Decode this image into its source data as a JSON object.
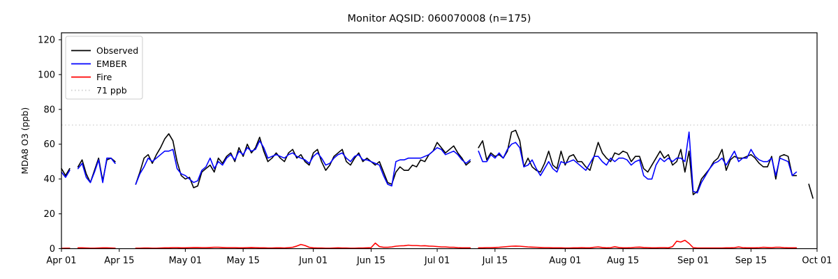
{
  "chart_data": {
    "type": "line",
    "title": "Monitor AQSID: 060070008 (n=175)",
    "xlabel": "",
    "ylabel": "MDA8 O3 (ppb)",
    "ylim": [
      0,
      124
    ],
    "yticks": [
      0,
      20,
      40,
      60,
      80,
      100,
      120
    ],
    "x_range_days": [
      0,
      183
    ],
    "xticks": [
      {
        "day": 0,
        "label": "Apr 01"
      },
      {
        "day": 14,
        "label": "Apr 15"
      },
      {
        "day": 30,
        "label": "May 01"
      },
      {
        "day": 44,
        "label": "May 15"
      },
      {
        "day": 61,
        "label": "Jun 01"
      },
      {
        "day": 75,
        "label": "Jun 15"
      },
      {
        "day": 91,
        "label": "Jul 01"
      },
      {
        "day": 105,
        "label": "Jul 15"
      },
      {
        "day": 122,
        "label": "Aug 01"
      },
      {
        "day": 136,
        "label": "Aug 15"
      },
      {
        "day": 153,
        "label": "Sep 01"
      },
      {
        "day": 167,
        "label": "Sep 15"
      },
      {
        "day": 183,
        "label": "Oct 01"
      }
    ],
    "grid": false,
    "background": "#ffffff",
    "spine_color": "#000000",
    "reference_line": {
      "value": 71,
      "label": "71 ppb",
      "color": "#cccccc",
      "style": "dotted"
    },
    "legend": {
      "position": "upper left",
      "entries": [
        {
          "label": "Observed",
          "color": "#000000",
          "style": "solid"
        },
        {
          "label": "EMBER",
          "color": "#0000ff",
          "style": "solid"
        },
        {
          "label": "Fire",
          "color": "#ff0000",
          "style": "solid"
        },
        {
          "label": "71 ppb",
          "color": "#cccccc",
          "style": "dotted"
        }
      ]
    },
    "series": [
      {
        "name": "Observed",
        "color": "#000000",
        "style": "solid",
        "values": [
          46,
          42,
          46,
          null,
          47,
          51,
          43,
          38,
          45,
          52,
          39,
          51,
          52,
          50,
          null,
          null,
          null,
          null,
          37,
          44,
          52,
          54,
          49,
          54,
          58,
          63,
          66,
          62,
          50,
          42,
          40,
          41,
          35,
          36,
          44,
          46,
          48,
          44,
          52,
          49,
          53,
          55,
          50,
          58,
          53,
          60,
          55,
          58,
          64,
          56,
          50,
          52,
          55,
          52,
          50,
          55,
          57,
          52,
          54,
          50,
          48,
          55,
          57,
          50,
          45,
          48,
          53,
          55,
          57,
          50,
          48,
          52,
          55,
          50,
          52,
          50,
          48,
          50,
          44,
          38,
          37,
          44,
          47,
          45,
          45,
          48,
          47,
          51,
          50,
          54,
          56,
          61,
          58,
          55,
          57,
          59,
          55,
          52,
          48,
          50,
          null,
          58,
          62,
          51,
          55,
          53,
          54,
          52,
          56,
          67,
          68,
          62,
          47,
          52,
          47,
          45,
          44,
          49,
          56,
          48,
          46,
          56,
          48,
          53,
          54,
          50,
          50,
          47,
          45,
          53,
          61,
          55,
          52,
          50,
          55,
          54,
          56,
          55,
          50,
          53,
          53,
          46,
          44,
          48,
          52,
          56,
          52,
          54,
          48,
          50,
          57,
          44,
          56,
          31,
          33,
          40,
          43,
          46,
          50,
          52,
          57,
          45,
          51,
          53,
          52,
          52,
          53,
          54,
          52,
          49,
          47,
          47,
          53,
          40,
          53,
          54,
          53,
          42,
          42,
          null,
          null,
          37,
          29
        ]
      },
      {
        "name": "EMBER",
        "color": "#0000ff",
        "style": "solid",
        "values": [
          44,
          41,
          45,
          null,
          46,
          49,
          41,
          38,
          44,
          51,
          38,
          52,
          52,
          49,
          null,
          null,
          null,
          null,
          37,
          43,
          47,
          52,
          50,
          52,
          54,
          56,
          56,
          57,
          46,
          43,
          42,
          40,
          38,
          39,
          45,
          47,
          52,
          46,
          50,
          48,
          52,
          54,
          51,
          56,
          54,
          58,
          56,
          57,
          62,
          58,
          52,
          53,
          54,
          53,
          52,
          54,
          55,
          53,
          52,
          51,
          49,
          53,
          55,
          52,
          48,
          49,
          52,
          54,
          55,
          52,
          50,
          53,
          54,
          51,
          51,
          50,
          49,
          48,
          42,
          37,
          36,
          50,
          51,
          51,
          52,
          52,
          52,
          52,
          53,
          54,
          56,
          58,
          57,
          54,
          55,
          56,
          54,
          51,
          49,
          51,
          null,
          56,
          50,
          50,
          54,
          52,
          55,
          52,
          57,
          60,
          61,
          58,
          47,
          48,
          51,
          46,
          42,
          46,
          50,
          46,
          44,
          50,
          49,
          50,
          51,
          49,
          47,
          45,
          49,
          53,
          53,
          50,
          48,
          52,
          50,
          52,
          52,
          51,
          48,
          50,
          51,
          42,
          40,
          40,
          48,
          52,
          50,
          52,
          50,
          52,
          52,
          50,
          67,
          33,
          32,
          38,
          42,
          46,
          49,
          50,
          52,
          48,
          52,
          56,
          50,
          52,
          52,
          57,
          53,
          51,
          50,
          50,
          52,
          42,
          52,
          51,
          50,
          42,
          44,
          null,
          null,
          null,
          null
        ]
      },
      {
        "name": "Fire",
        "color": "#ff0000",
        "style": "solid",
        "values": [
          0.2,
          0.3,
          0.3,
          null,
          0.5,
          0.5,
          0.4,
          0.3,
          0.3,
          0.4,
          0.5,
          0.5,
          0.4,
          0.3,
          null,
          null,
          null,
          null,
          0.3,
          0.3,
          0.4,
          0.4,
          0.3,
          0.3,
          0.4,
          0.5,
          0.5,
          0.6,
          0.6,
          0.5,
          0.5,
          0.6,
          0.7,
          0.7,
          0.6,
          0.6,
          0.7,
          0.8,
          0.8,
          0.7,
          0.6,
          0.6,
          0.6,
          0.5,
          0.5,
          0.6,
          0.7,
          0.6,
          0.5,
          0.5,
          0.4,
          0.4,
          0.5,
          0.5,
          0.4,
          0.6,
          0.8,
          1.5,
          2.4,
          1.8,
          0.8,
          0.5,
          0.4,
          0.4,
          0.3,
          0.3,
          0.4,
          0.5,
          0.4,
          0.4,
          0.3,
          0.3,
          0.4,
          0.4,
          0.5,
          0.6,
          3.2,
          1.2,
          0.8,
          0.8,
          1.0,
          1.4,
          1.6,
          1.7,
          2.0,
          1.8,
          1.8,
          1.6,
          1.7,
          1.5,
          1.4,
          1.2,
          1.0,
          1.0,
          0.8,
          0.8,
          0.6,
          0.5,
          0.5,
          0.5,
          null,
          0.5,
          0.5,
          0.6,
          0.6,
          0.7,
          0.8,
          1.0,
          1.2,
          1.4,
          1.5,
          1.4,
          1.2,
          1.0,
          0.9,
          0.8,
          0.7,
          0.6,
          0.6,
          0.5,
          0.5,
          0.5,
          0.4,
          0.4,
          0.5,
          0.5,
          0.6,
          0.5,
          0.5,
          0.8,
          1.0,
          0.7,
          0.5,
          0.6,
          1.1,
          0.7,
          0.5,
          0.5,
          0.6,
          0.8,
          0.9,
          0.7,
          0.6,
          0.5,
          0.5,
          0.6,
          0.6,
          0.5,
          1.2,
          4.3,
          3.8,
          4.8,
          3.0,
          0.6,
          0.4,
          0.4,
          0.4,
          0.4,
          0.4,
          0.4,
          0.4,
          0.5,
          0.5,
          0.6,
          1.0,
          0.6,
          0.5,
          0.5,
          0.5,
          0.6,
          0.8,
          0.7,
          0.6,
          0.8,
          0.8,
          0.6,
          0.5,
          0.5,
          0.5,
          null,
          null,
          null,
          null
        ]
      }
    ]
  }
}
